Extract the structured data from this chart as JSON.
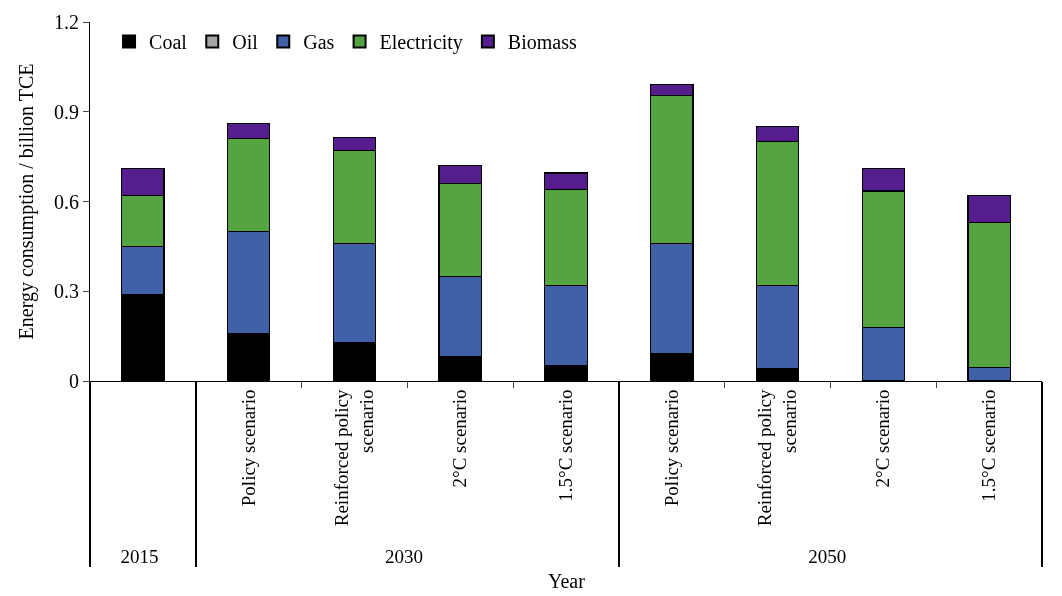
{
  "chart_data": {
    "type": "bar",
    "stacked": true,
    "annotations": [
      "Year"
    ],
    "ylabel": "Energy consumption / billion TCE",
    "categories": [
      [
        "2015",
        null
      ],
      [
        "2030",
        "Policy scenario"
      ],
      [
        null,
        "Reinforced policy scenario"
      ],
      [
        null,
        "2°C scenario"
      ],
      [
        null,
        "1.5°C scenario"
      ],
      [
        "2050",
        "Policy scenario"
      ],
      [
        null,
        "Reinforced policy scenario"
      ],
      [
        null,
        "2°C scenario"
      ],
      [
        null,
        "1.5°C scenario"
      ]
    ],
    "series": [
      {
        "name": "Coal",
        "color": "#000000",
        "values": [
          0.29,
          0.16,
          0.13,
          0.08,
          0.05,
          0.09,
          0.04,
          0,
          0
        ]
      },
      {
        "name": "Oil",
        "color": "#a5a5a5",
        "values": [
          0,
          0,
          0,
          0,
          0,
          0,
          0,
          0,
          0
        ]
      },
      {
        "name": "Gas",
        "color": "#4060a8",
        "values": [
          0.16,
          0.34,
          0.33,
          0.27,
          0.27,
          0.37,
          0.28,
          0.18,
          0.045
        ]
      },
      {
        "name": "Electricity",
        "color": "#55a444",
        "values": [
          0.17,
          0.31,
          0.31,
          0.31,
          0.32,
          0.495,
          0.48,
          0.455,
          0.485
        ]
      },
      {
        "name": "Biomass",
        "color": "#561d8e",
        "values": [
          0.09,
          0.05,
          0.045,
          0.06,
          0.055,
          0.035,
          0.05,
          0.075,
          0.09
        ]
      }
    ],
    "ylim": [
      0,
      1.2
    ],
    "yticks": [
      0,
      0.3,
      0.6,
      0.9,
      1.2
    ],
    "grid": false,
    "legend": "top left"
  }
}
